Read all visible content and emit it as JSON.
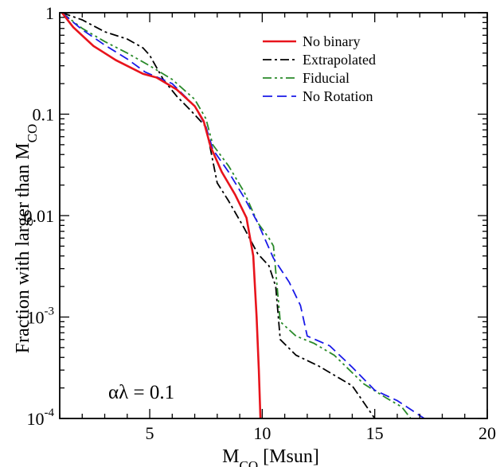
{
  "chart_data": {
    "type": "line",
    "title": "",
    "xlabel": "M_CO [Msun]",
    "xlabel_main": "M",
    "xlabel_sub": "CO",
    "xlabel_unit": " [Msun]",
    "ylabel": "Fraction with larger than M_CO",
    "ylabel_main": "Fraction with larger than M",
    "ylabel_sub": "CO",
    "xlim": [
      1,
      20
    ],
    "ylim": [
      0.0001,
      1
    ],
    "yscale": "log",
    "grid": false,
    "legend_position": "top-right",
    "annotation": "αλ = 0.1",
    "x_ticks": [
      {
        "value": 5,
        "label": "5"
      },
      {
        "value": 10,
        "label": "10"
      },
      {
        "value": 15,
        "label": "15"
      },
      {
        "value": 20,
        "label": "20"
      }
    ],
    "y_ticks": [
      {
        "value": 1,
        "label": "1",
        "base": "",
        "exp": ""
      },
      {
        "value": 0.1,
        "label": "0.1",
        "base": "",
        "exp": ""
      },
      {
        "value": 0.01,
        "label": "0.01",
        "base": "",
        "exp": ""
      },
      {
        "value": 0.001,
        "label": "",
        "base": "10",
        "exp": "-3"
      },
      {
        "value": 0.0001,
        "label": "",
        "base": "10",
        "exp": "-4"
      }
    ],
    "series": [
      {
        "name": "No binary",
        "color": "#e8141c",
        "dash": "solid",
        "x": [
          1.1,
          1.6,
          2.5,
          3.5,
          4.7,
          5.3,
          6.2,
          7.0,
          7.4,
          7.7,
          8.2,
          8.8,
          9.3,
          9.6,
          9.75,
          9.85,
          9.92
        ],
        "y": [
          1.0,
          0.72,
          0.47,
          0.34,
          0.25,
          0.23,
          0.175,
          0.12,
          0.085,
          0.048,
          0.027,
          0.016,
          0.0095,
          0.004,
          0.001,
          0.0003,
          0.0001
        ]
      },
      {
        "name": "Extrapolated",
        "color": "#000000",
        "dash": "dashdot",
        "x": [
          1.1,
          2.0,
          3.0,
          4.0,
          4.7,
          5.0,
          5.6,
          6.2,
          6.8,
          7.5,
          7.7,
          8.0,
          8.5,
          9.2,
          9.8,
          10.3,
          10.6,
          10.8,
          11.5,
          12.5,
          14.0,
          15.0
        ],
        "y": [
          1.0,
          0.85,
          0.65,
          0.55,
          0.45,
          0.38,
          0.22,
          0.15,
          0.11,
          0.075,
          0.045,
          0.021,
          0.014,
          0.0075,
          0.0042,
          0.0032,
          0.002,
          0.0006,
          0.00042,
          0.00033,
          0.00021,
          0.0001
        ]
      },
      {
        "name": "Fiducial",
        "color": "#2a8a2a",
        "dash": "dashdotdot",
        "x": [
          1.1,
          2.0,
          3.0,
          4.0,
          5.0,
          6.0,
          7.0,
          7.5,
          7.8,
          8.5,
          9.2,
          9.8,
          10.3,
          10.5,
          10.8,
          11.5,
          12.3,
          13.2,
          14.5,
          15.5,
          16.2,
          16.6
        ],
        "y": [
          1.0,
          0.7,
          0.52,
          0.4,
          0.3,
          0.22,
          0.14,
          0.09,
          0.05,
          0.031,
          0.017,
          0.0085,
          0.006,
          0.005,
          0.0009,
          0.00065,
          0.00055,
          0.00042,
          0.00022,
          0.00016,
          0.00013,
          0.0001
        ]
      },
      {
        "name": "No Rotation",
        "color": "#1a1ae8",
        "dash": "dashed",
        "x": [
          1.1,
          2.0,
          3.0,
          4.0,
          4.8,
          6.0,
          7.0,
          7.5,
          7.8,
          8.5,
          9.2,
          9.8,
          10.5,
          11.2,
          11.7,
          12.0,
          13.0,
          14.0,
          15.0,
          16.0,
          17.2
        ],
        "y": [
          1.0,
          0.68,
          0.48,
          0.35,
          0.26,
          0.2,
          0.12,
          0.075,
          0.045,
          0.027,
          0.015,
          0.0085,
          0.0038,
          0.0022,
          0.0013,
          0.00065,
          0.00052,
          0.00032,
          0.00019,
          0.00015,
          0.0001
        ]
      }
    ]
  }
}
